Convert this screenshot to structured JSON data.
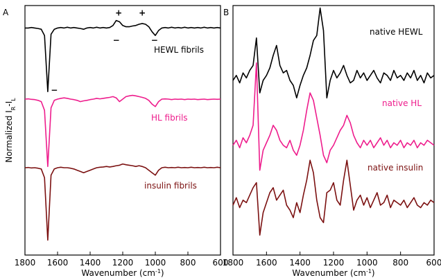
{
  "chart_data": [
    {
      "type": "line",
      "panel_label": "A",
      "ylabel": [
        "Normalized I",
        "R",
        "-I",
        "L"
      ],
      "xlabel": [
        "Wavenumber (cm",
        "-1",
        ")"
      ],
      "xlim": [
        1800,
        600
      ],
      "xticks": [
        1800,
        1600,
        1400,
        1200,
        1000,
        800,
        600
      ],
      "ylim": [
        0,
        100
      ],
      "x": [
        1800,
        1780,
        1760,
        1740,
        1720,
        1700,
        1680,
        1660,
        1640,
        1620,
        1600,
        1580,
        1560,
        1540,
        1520,
        1500,
        1480,
        1460,
        1440,
        1420,
        1400,
        1380,
        1360,
        1340,
        1320,
        1300,
        1280,
        1260,
        1240,
        1220,
        1200,
        1180,
        1160,
        1140,
        1120,
        1100,
        1080,
        1060,
        1040,
        1020,
        1000,
        980,
        960,
        940,
        920,
        900,
        880,
        860,
        840,
        820,
        800,
        780,
        760,
        740,
        720,
        700,
        680,
        660,
        640,
        620,
        600
      ],
      "series": [
        {
          "name": "HEWL fibrils",
          "color": "#000000",
          "values": [
            91,
            91,
            91.2,
            91,
            90.8,
            90.5,
            88,
            65.5,
            88.5,
            90.5,
            91,
            91.2,
            91,
            91.3,
            91,
            91.2,
            91,
            90.8,
            90.5,
            91,
            91.2,
            91,
            91.3,
            91,
            91.2,
            91,
            91.2,
            92,
            94,
            93.5,
            92,
            91.5,
            91.5,
            91.8,
            92,
            92.5,
            92.8,
            92.5,
            91.5,
            89.5,
            88,
            90,
            91,
            91.2,
            91,
            91.3,
            91,
            91.2,
            91,
            91.3,
            91,
            91.2,
            91,
            91.2,
            91,
            91.3,
            91,
            91.2,
            91,
            91.2,
            91
          ]
        },
        {
          "name": "HL fibrils",
          "color": "#ee1c8c",
          "values": [
            62.5,
            62.6,
            62.4,
            62.3,
            62,
            61.5,
            58,
            35.5,
            59,
            62,
            62.5,
            62.8,
            63,
            62.8,
            62.5,
            62.3,
            62,
            61.5,
            61.8,
            62,
            62.3,
            62.5,
            62.8,
            62.6,
            62.8,
            63,
            63.2,
            63.5,
            63,
            61.5,
            62.5,
            63.5,
            63.8,
            64,
            63.8,
            63.5,
            63.2,
            62.8,
            62,
            60.5,
            59.5,
            61.5,
            62.5,
            62.6,
            62.5,
            62.3,
            62.5,
            62.4,
            62.5,
            62.3,
            62.5,
            62.4,
            62.5,
            62.3,
            62.4,
            62.5,
            62.3,
            62.4,
            62.5,
            62.4,
            62.5
          ]
        },
        {
          "name": "insulin fibrils",
          "color": "#7b1010",
          "values": [
            35,
            35.1,
            34.9,
            35,
            34.8,
            34.5,
            31,
            6,
            32,
            34.5,
            35,
            35.2,
            35,
            35,
            34.8,
            34.5,
            34,
            33.5,
            33,
            33.5,
            34,
            34.5,
            35,
            35.2,
            35.3,
            35.5,
            35.3,
            35.5,
            35.8,
            36,
            36.5,
            36.2,
            36,
            35.8,
            35.5,
            35.8,
            35.5,
            35,
            34,
            33,
            32,
            34,
            35,
            35.2,
            35,
            35.1,
            35,
            35.2,
            35,
            35.1,
            35,
            35.2,
            35,
            35.1,
            35,
            35.2,
            35,
            35.1,
            35,
            35.2,
            35
          ]
        }
      ],
      "annotations": [
        {
          "text": "+",
          "x": 1225,
          "y": 97
        },
        {
          "text": "+",
          "x": 1080,
          "y": 97
        },
        {
          "text": "−",
          "x": 1620,
          "y": 66
        },
        {
          "text": "−",
          "x": 1240,
          "y": 86
        },
        {
          "text": "−",
          "x": 1005,
          "y": 86
        }
      ]
    },
    {
      "type": "line",
      "panel_label": "B",
      "xlabel": [
        "Wavenumber (cm",
        "-1",
        ")"
      ],
      "xlim": [
        1800,
        600
      ],
      "xticks": [
        1800,
        1600,
        1400,
        1200,
        1000,
        800,
        600
      ],
      "ylim": [
        0,
        100
      ],
      "x": [
        1800,
        1780,
        1760,
        1740,
        1720,
        1700,
        1680,
        1660,
        1640,
        1620,
        1600,
        1580,
        1560,
        1540,
        1520,
        1500,
        1480,
        1460,
        1440,
        1420,
        1400,
        1380,
        1360,
        1340,
        1320,
        1300,
        1280,
        1260,
        1240,
        1220,
        1200,
        1180,
        1160,
        1140,
        1120,
        1100,
        1080,
        1060,
        1040,
        1020,
        1000,
        980,
        960,
        940,
        920,
        900,
        880,
        860,
        840,
        820,
        800,
        780,
        760,
        740,
        720,
        700,
        680,
        660,
        640,
        620,
        600
      ],
      "series": [
        {
          "name": "native HEWL",
          "color": "#000000",
          "values": [
            70,
            72,
            69,
            73,
            71,
            74,
            76,
            87,
            65,
            70,
            72,
            75,
            80,
            84,
            76,
            73,
            74,
            70,
            68,
            63,
            68,
            72,
            75,
            80,
            86,
            88,
            99,
            90,
            63,
            70,
            74,
            71,
            73,
            76,
            72,
            69,
            70,
            74,
            71,
            73,
            70,
            72,
            74,
            71,
            69,
            73,
            72,
            70,
            74,
            71,
            72,
            70,
            73,
            71,
            74,
            70,
            72,
            69,
            73,
            71,
            72
          ]
        },
        {
          "name": "native HL",
          "color": "#ee1c8c",
          "values": [
            44,
            46,
            43,
            47,
            45,
            48,
            52,
            77,
            34,
            42,
            45,
            48,
            52,
            50,
            46,
            44,
            43,
            46,
            42,
            40,
            44,
            50,
            58,
            65,
            62,
            55,
            48,
            40,
            37,
            42,
            44,
            47,
            50,
            52,
            56,
            53,
            48,
            45,
            43,
            46,
            44,
            46,
            43,
            45,
            47,
            44,
            46,
            43,
            45,
            44,
            46,
            43,
            45,
            44,
            46,
            43,
            45,
            44,
            46,
            45,
            44
          ]
        },
        {
          "name": "native insulin",
          "color": "#7b1010",
          "values": [
            20,
            23,
            19,
            22,
            21,
            24,
            27,
            29,
            8,
            17,
            21,
            25,
            27,
            22,
            24,
            26,
            20,
            18,
            15,
            21,
            17,
            24,
            30,
            38,
            33,
            22,
            15,
            13,
            25,
            26,
            29,
            22,
            20,
            30,
            38,
            28,
            18,
            22,
            24,
            20,
            23,
            19,
            22,
            25,
            20,
            21,
            24,
            19,
            22,
            21,
            20,
            22,
            19,
            21,
            23,
            20,
            19,
            21,
            20,
            22,
            21
          ]
        }
      ]
    }
  ]
}
